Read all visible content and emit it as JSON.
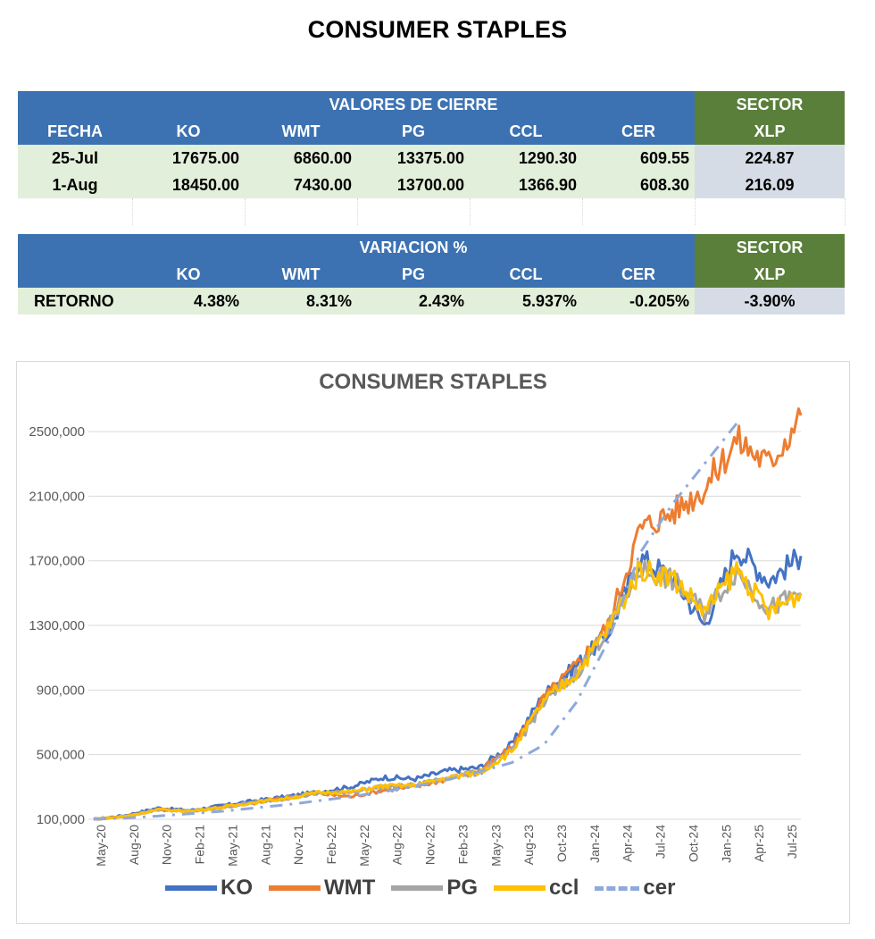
{
  "page_title": "CONSUMER STAPLES",
  "table1": {
    "group_header": "VALORES DE CIERRE",
    "sector_label": "SECTOR",
    "columns": [
      "FECHA",
      "KO",
      "WMT",
      "PG",
      "CCL",
      "CER",
      "XLP"
    ],
    "rows": [
      [
        "25-Jul",
        "17675.00",
        "6860.00",
        "13375.00",
        "1290.30",
        "609.55",
        "224.87"
      ],
      [
        "1-Aug",
        "18450.00",
        "7430.00",
        "13700.00",
        "1366.90",
        "608.30",
        "216.09"
      ]
    ]
  },
  "table2": {
    "group_header": "VARIACION %",
    "sector_label": "SECTOR",
    "columns": [
      "",
      "KO",
      "WMT",
      "PG",
      "CCL",
      "CER",
      "XLP"
    ],
    "row": [
      "RETORNO",
      "4.38%",
      "8.31%",
      "2.43%",
      "5.937%",
      "-0.205%",
      "-3.90%"
    ]
  },
  "colors": {
    "header_blue": "#3c72b2",
    "sector_green": "#5a7f3b",
    "row_light_green": "#e2efda",
    "sector_grey": "#d6dce5"
  },
  "chart_data": {
    "type": "line",
    "title": "CONSUMER STAPLES",
    "xlabel": "",
    "ylabel": "",
    "ylim": [
      100000,
      2600000
    ],
    "yticks": [
      "100,000",
      "500,000",
      "900,000",
      "1300,000",
      "1700,000",
      "2100,000",
      "2500,000"
    ],
    "ytick_values": [
      100000,
      500000,
      900000,
      1300000,
      1700000,
      2100000,
      2500000
    ],
    "xticks": [
      "May-20",
      "Aug-20",
      "Nov-20",
      "Feb-21",
      "May-21",
      "Aug-21",
      "Nov-21",
      "Feb-22",
      "May-22",
      "Aug-22",
      "Nov-22",
      "Feb-23",
      "May-23",
      "Aug-23",
      "Oct-23",
      "Jan-24",
      "Apr-24",
      "Jul-24",
      "Oct-24",
      "Jan-25",
      "Apr-25",
      "Jul-25"
    ],
    "grid": "horizontal",
    "legend_position": "bottom",
    "series": [
      {
        "name": "KO",
        "color": "#4472c4",
        "style": "solid",
        "values": [
          100000,
          125000,
          170000,
          155000,
          185000,
          215000,
          240000,
          270000,
          300000,
          360000,
          350000,
          400000,
          420000,
          560000,
          870000,
          1050000,
          1250000,
          1720000,
          1600000,
          1300000,
          1780000,
          1580000,
          1730000
        ]
      },
      {
        "name": "WMT",
        "color": "#ed7d31",
        "style": "solid",
        "values": [
          100000,
          120000,
          160000,
          150000,
          175000,
          200000,
          235000,
          260000,
          240000,
          280000,
          300000,
          350000,
          400000,
          540000,
          850000,
          1050000,
          1300000,
          1900000,
          2000000,
          2150000,
          2450000,
          2300000,
          2600000
        ]
      },
      {
        "name": "PG",
        "color": "#a5a5a5",
        "style": "solid",
        "values": [
          100000,
          118000,
          160000,
          150000,
          175000,
          205000,
          230000,
          260000,
          270000,
          300000,
          310000,
          360000,
          390000,
          520000,
          820000,
          1000000,
          1280000,
          1650000,
          1580000,
          1380000,
          1640000,
          1400000,
          1500000
        ]
      },
      {
        "name": "ccl",
        "color": "#ffc000",
        "style": "solid",
        "values": [
          100000,
          118000,
          160000,
          150000,
          175000,
          205000,
          230000,
          265000,
          270000,
          305000,
          310000,
          355000,
          390000,
          520000,
          830000,
          1000000,
          1280000,
          1650000,
          1600000,
          1380000,
          1650000,
          1380000,
          1500000
        ]
      },
      {
        "name": "cer",
        "color": "#8ea9db",
        "style": "dashdot",
        "values": [
          100000,
          108000,
          120000,
          135000,
          150000,
          170000,
          190000,
          215000,
          240000,
          270000,
          305000,
          345000,
          395000,
          450000,
          560000,
          820000,
          1200000,
          1750000,
          2050000,
          2300000,
          2550000,
          null,
          null
        ]
      }
    ]
  }
}
